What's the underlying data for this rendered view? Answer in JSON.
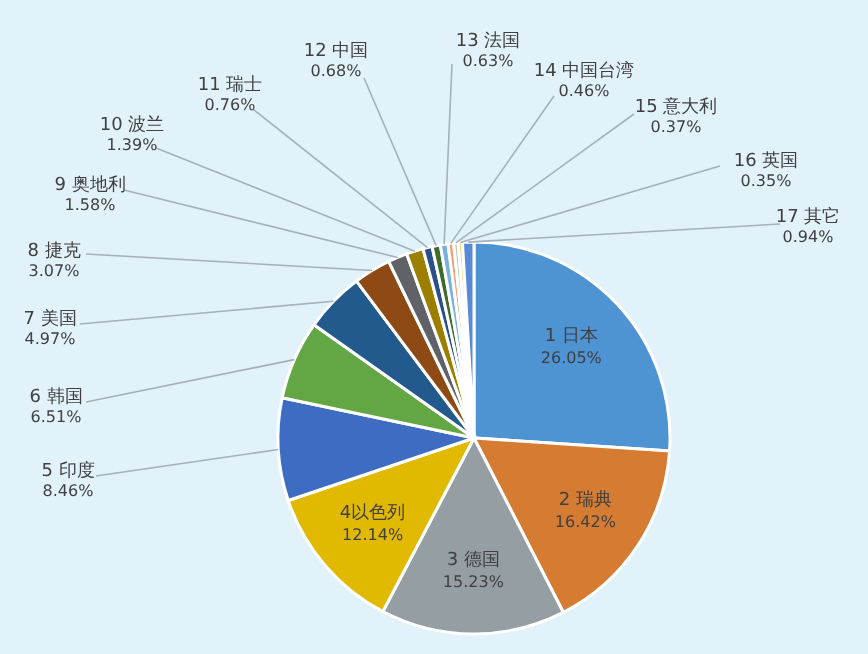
{
  "chart_data": {
    "type": "pie",
    "categories": [
      "1 日本",
      "2 瑞典",
      "3 德国",
      "4以色列",
      "5 印度",
      "6 韩国",
      "7 美国",
      "8 捷克",
      "9 奥地利",
      "10 波兰",
      "11 瑞士",
      "12 中国",
      "13 法国",
      "14 中国台湾",
      "15 意大利",
      "16 英国",
      "17 其它"
    ],
    "values": [
      26.05,
      16.42,
      15.23,
      12.14,
      8.46,
      6.51,
      4.97,
      3.07,
      1.58,
      1.39,
      0.76,
      0.68,
      0.63,
      0.46,
      0.37,
      0.35,
      0.94
    ],
    "value_labels": [
      "26.05%",
      "16.42%",
      "15.23%",
      "12.14%",
      "8.46%",
      "6.51%",
      "4.97%",
      "3.07%",
      "1.58%",
      "1.39%",
      "0.76%",
      "0.68%",
      "0.63%",
      "0.46%",
      "0.37%",
      "0.35%",
      "0.94%"
    ],
    "colors": [
      "#4e93d2",
      "#d67b32",
      "#949ea3",
      "#e1b900",
      "#3d6cc2",
      "#62a744",
      "#235a8d",
      "#8e4a14",
      "#5f6368",
      "#9c7f00",
      "#2a4f8a",
      "#3d6b2a",
      "#7ab0df",
      "#f0a070",
      "#c0c4c8",
      "#f5d860",
      "#5a8ad6"
    ]
  }
}
